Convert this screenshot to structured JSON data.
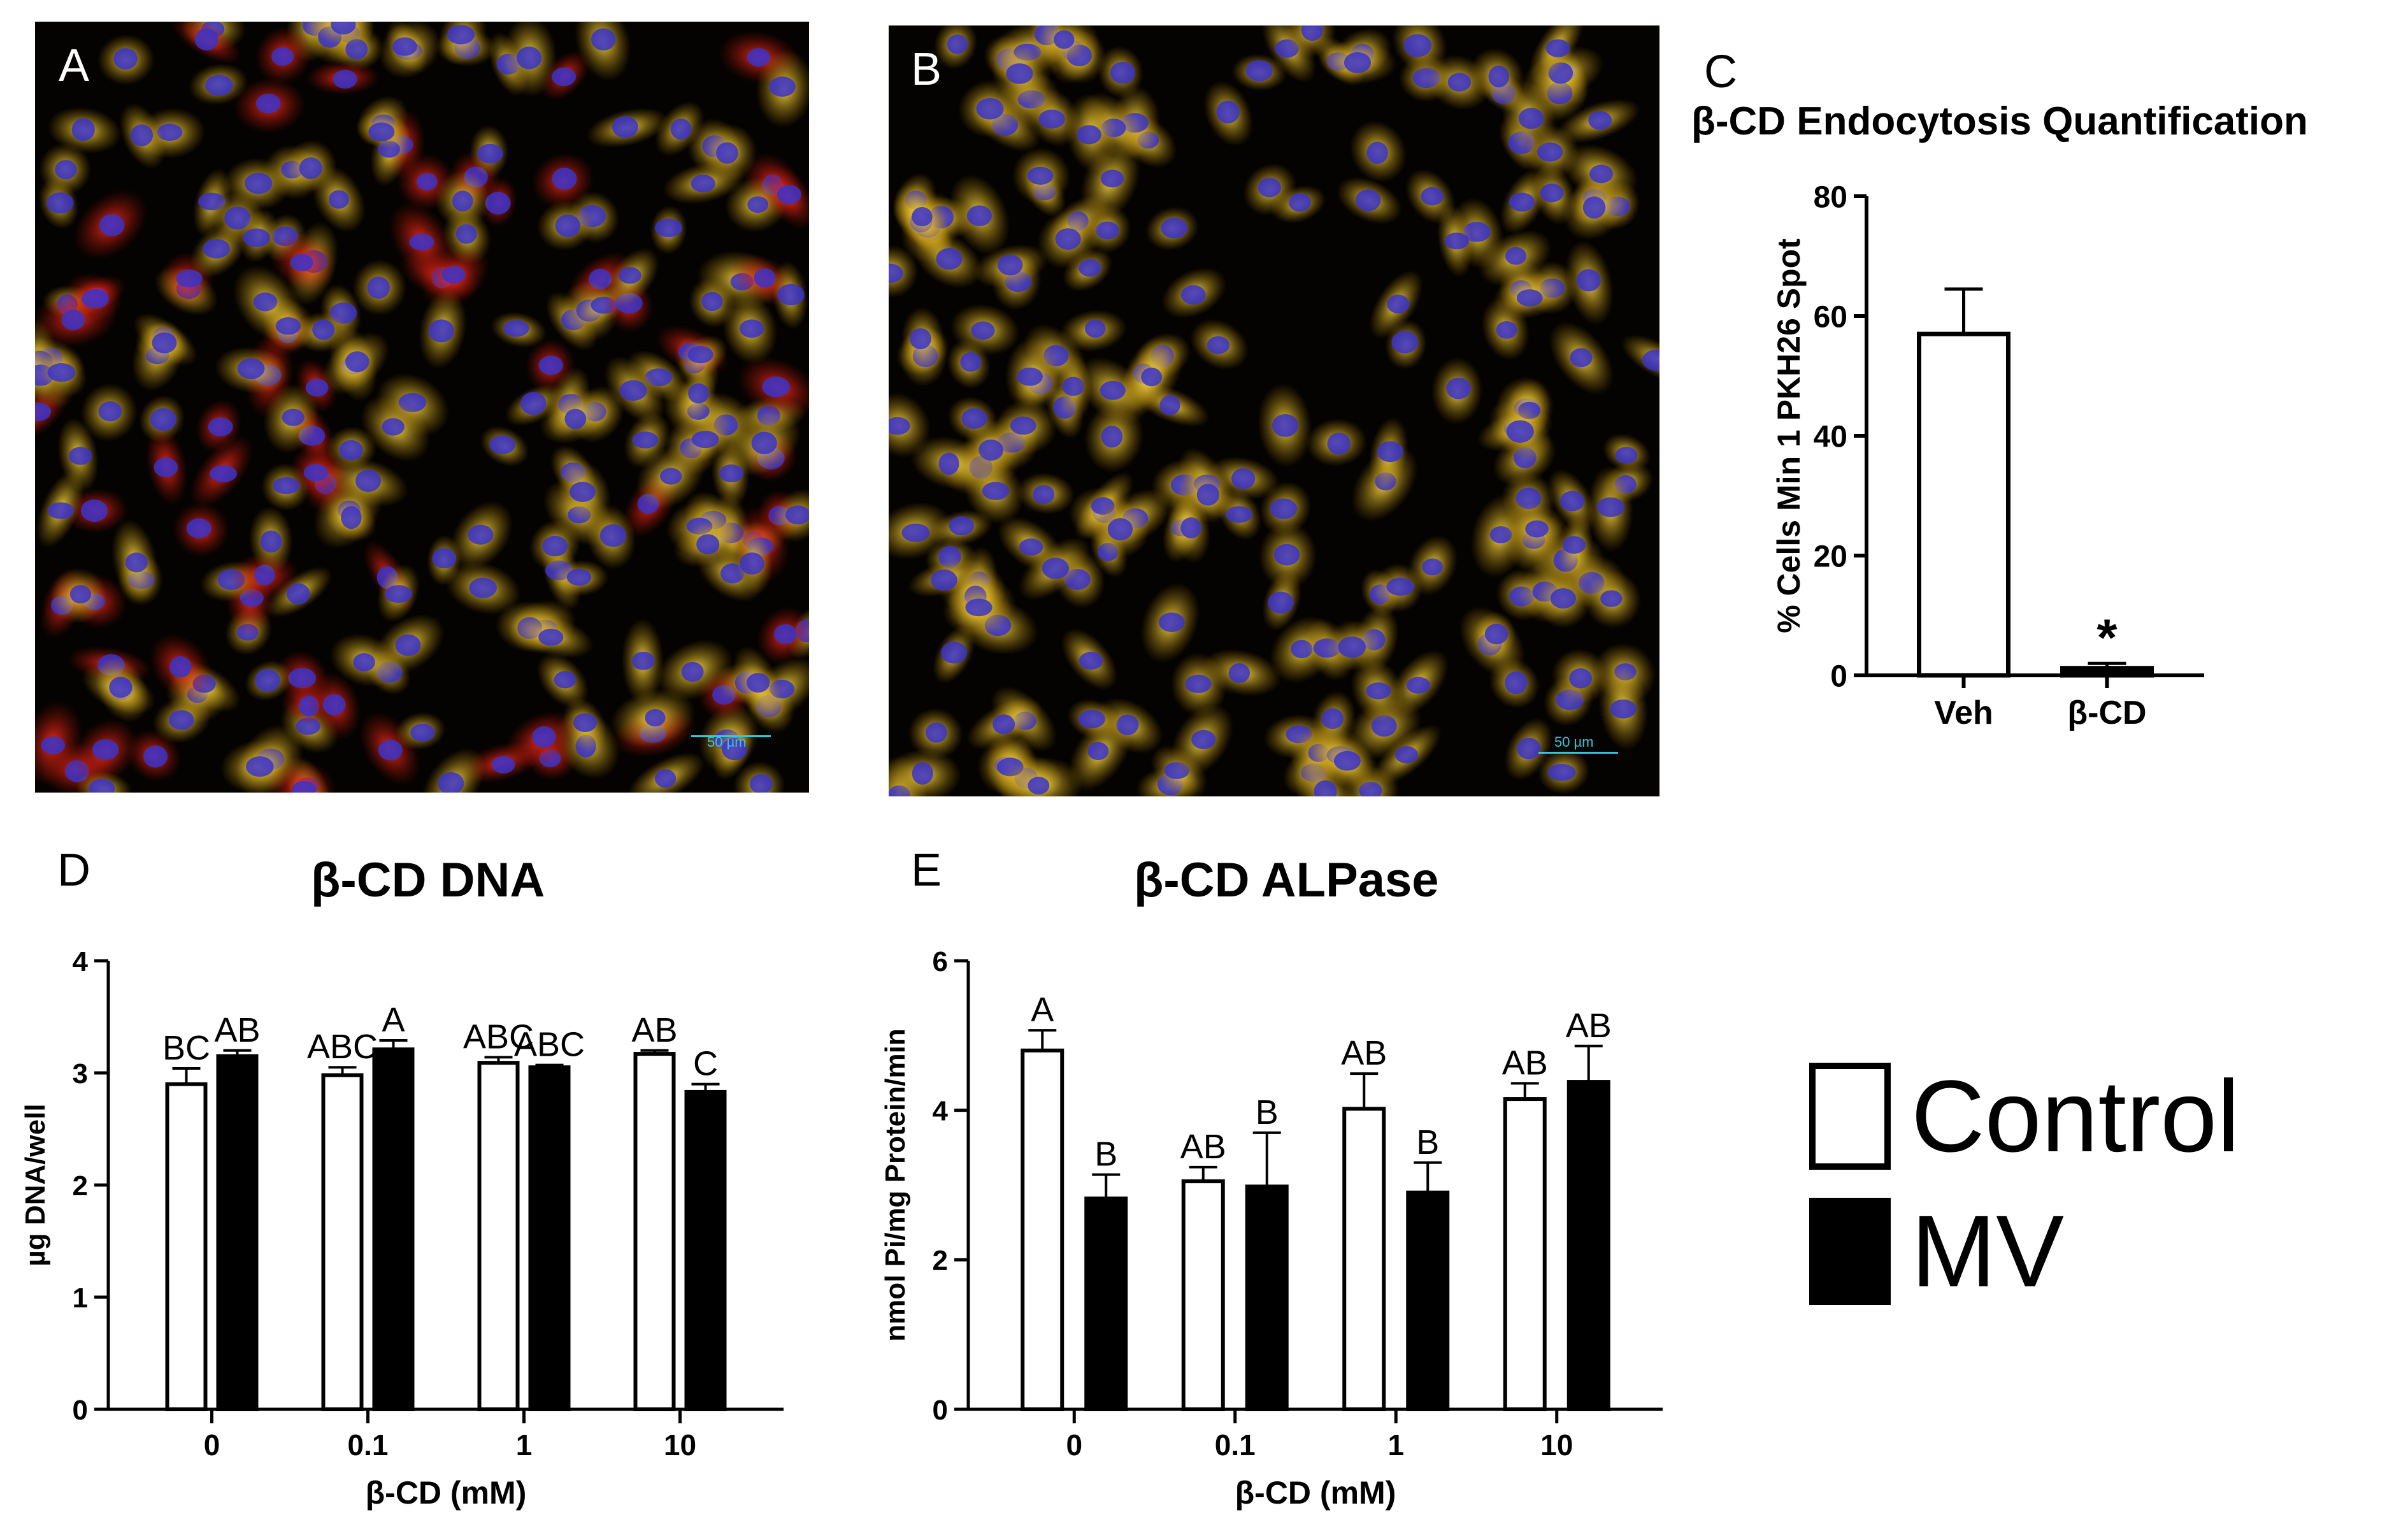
{
  "panels": {
    "a": {
      "letter": "A",
      "scale_bar": "50 µm"
    },
    "b": {
      "letter": "B",
      "scale_bar": "50 µm"
    },
    "c": {
      "letter": "C",
      "title": "β-CD Endocytosis Quantification"
    },
    "d": {
      "letter": "D",
      "title": "β-CD DNA"
    },
    "e": {
      "letter": "E",
      "title": "β-CD ALPase"
    }
  },
  "legend": {
    "items": [
      {
        "label": "Control",
        "color": "#ffffff"
      },
      {
        "label": "MV",
        "color": "#000000"
      }
    ]
  },
  "colors": {
    "control": "#ffffff",
    "mv": "#000000",
    "axis": "#000000"
  },
  "chart_data": [
    {
      "id": "c",
      "type": "bar",
      "title": "β-CD Endocytosis Quantification",
      "xlabel": "",
      "ylabel": "% Cells Min 1 PKH26 Spot",
      "ylim": [
        0,
        80
      ],
      "yticks": [
        "0",
        "20",
        "40",
        "60",
        "80"
      ],
      "categories": [
        "Veh",
        "β-CD"
      ],
      "series": [
        {
          "values": [
            57,
            1.2
          ],
          "errors": [
            7.5,
            0.8
          ]
        }
      ],
      "annotations": [
        "",
        "*"
      ]
    },
    {
      "id": "d",
      "type": "bar",
      "title": "β-CD DNA",
      "xlabel": "β-CD (mM)",
      "ylabel": "µg DNA/well",
      "ylim": [
        0,
        4
      ],
      "yticks": [
        "0",
        "1",
        "2",
        "3",
        "4"
      ],
      "categories": [
        "0",
        "0.1",
        "1",
        "10"
      ],
      "series": [
        {
          "name": "Control",
          "values": [
            2.9,
            2.98,
            3.09,
            3.17
          ],
          "errors": [
            0.14,
            0.07,
            0.05,
            0.03
          ],
          "letters": [
            "BC",
            "ABC",
            "ABC",
            "AB"
          ]
        },
        {
          "name": "MV",
          "values": [
            3.15,
            3.21,
            3.05,
            2.83
          ],
          "errors": [
            0.05,
            0.08,
            0.02,
            0.07
          ],
          "letters": [
            "AB",
            "A",
            "ABC",
            "C"
          ]
        }
      ]
    },
    {
      "id": "e",
      "type": "bar",
      "title": "β-CD ALPase",
      "xlabel": "β-CD (mM)",
      "ylabel": "nmol Pi/mg Protein/min",
      "ylim": [
        0,
        6
      ],
      "yticks": [
        "0",
        "2",
        "4",
        "6"
      ],
      "categories": [
        "0",
        "0.1",
        "1",
        "10"
      ],
      "series": [
        {
          "name": "Control",
          "values": [
            4.8,
            3.05,
            4.02,
            4.15
          ],
          "errors": [
            0.27,
            0.19,
            0.47,
            0.21
          ],
          "letters": [
            "A",
            "AB",
            "AB",
            "AB"
          ]
        },
        {
          "name": "MV",
          "values": [
            2.82,
            2.98,
            2.9,
            4.38
          ],
          "errors": [
            0.32,
            0.72,
            0.4,
            0.48
          ],
          "letters": [
            "B",
            "B",
            "B",
            "AB"
          ]
        }
      ]
    }
  ]
}
